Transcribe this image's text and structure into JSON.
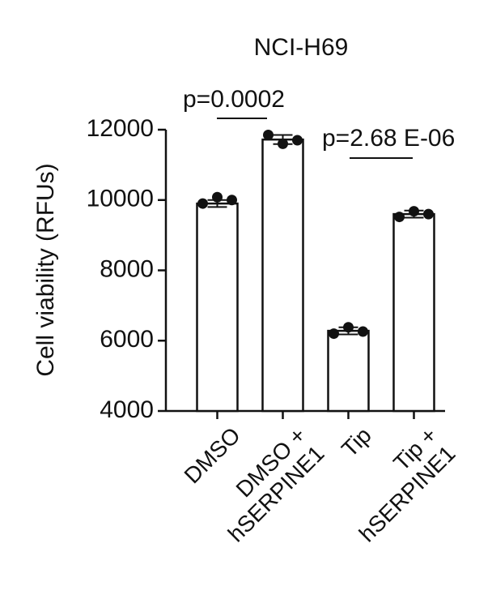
{
  "chart_data": {
    "type": "bar",
    "title": "NCI-H69",
    "ylabel": "Cell viability (RFUs)",
    "categories": [
      "DMSO",
      "DMSO +\nhSERPINE1",
      "Tip",
      "Tip +\nhSERPINE1"
    ],
    "values": [
      9900,
      11720,
      6280,
      9600
    ],
    "errors": [
      100,
      130,
      100,
      100
    ],
    "points": [
      [
        9900,
        10080,
        10000
      ],
      [
        11850,
        11600,
        11700
      ],
      [
        6200,
        6380,
        6260
      ],
      [
        9520,
        9680,
        9600
      ]
    ],
    "color": "#ffffff",
    "ylim": [
      4000,
      12000
    ],
    "yticks": [
      4000,
      6000,
      8000,
      10000,
      12000
    ],
    "annotations": [
      "p=0.0002",
      "p=2.68 E-06"
    ]
  }
}
